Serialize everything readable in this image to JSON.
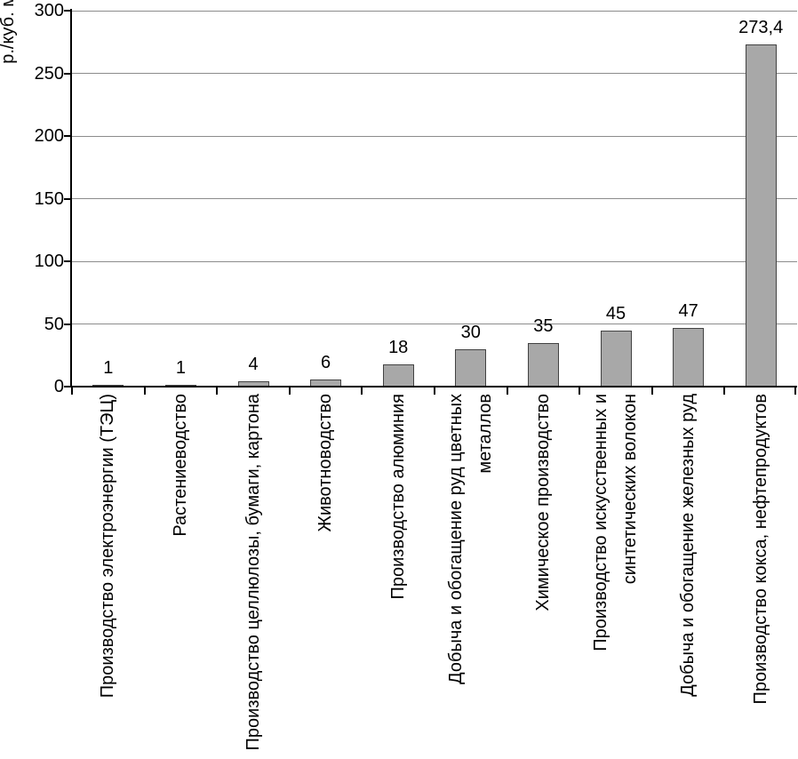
{
  "chart_data": {
    "type": "bar",
    "title": "",
    "xlabel": "",
    "ylabel": "р./куб. м",
    "ylim": [
      0,
      300
    ],
    "yticks": [
      0,
      50,
      100,
      150,
      200,
      250,
      300
    ],
    "grid": true,
    "legend": null,
    "categories": [
      "Производство электроэнергии (ТЭЦ)",
      "Растениеводство",
      "Производство целлюлозы, бумаги, картона",
      "Животноводство",
      "Производство алюминия",
      "Добыча и обогащение руд цветных\nметаллов",
      "Химическое производство",
      "Производство искусственных и\nсинтетических волокон",
      "Добыча и обогащение железных руд",
      "Производство кокса, нефтепродуктов"
    ],
    "values": [
      1,
      1,
      4,
      6,
      18,
      30,
      35,
      45,
      47,
      273.4
    ],
    "value_labels": [
      "1",
      "1",
      "4",
      "6",
      "18",
      "30",
      "35",
      "45",
      "47",
      "273,4"
    ],
    "colors": {
      "bar_fill": "#a8a8a8",
      "bar_border": "#424242",
      "gridline": "#8c8c8c",
      "axis": "#000000",
      "text": "#000000",
      "background": "#ffffff"
    }
  }
}
